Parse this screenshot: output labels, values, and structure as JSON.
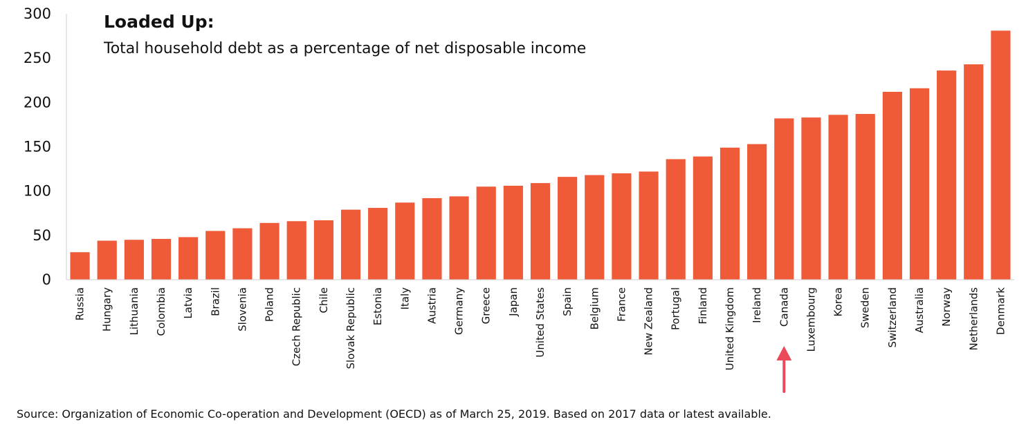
{
  "chart_data": {
    "type": "bar",
    "title": "Loaded Up:",
    "subtitle": "Total household debt as a percentage of net disposable income",
    "xlabel": "",
    "ylabel": "",
    "ylim": [
      0,
      300
    ],
    "yticks": [
      "0",
      "50",
      "100",
      "150",
      "200",
      "250",
      "300"
    ],
    "grid": false,
    "bar_color": "#ef5a38",
    "highlight_color": "#ea4a5a",
    "highlight_category": "Canada",
    "categories": [
      "Russia",
      "Hungary",
      "Lithuania",
      "Colombia",
      "Latvia",
      "Brazil",
      "Slovenia",
      "Poland",
      "Czech Republic",
      "Chile",
      "Slovak Republic",
      "Estonia",
      "Italy",
      "Austria",
      "Germany",
      "Greece",
      "Japan",
      "United States",
      "Spain",
      "Belgium",
      "France",
      "New Zealand",
      "Portugal",
      "Finland",
      "United Kingdom",
      "Ireland",
      "Canada",
      "Luxembourg",
      "Korea",
      "Sweden",
      "Switzerland",
      "Australia",
      "Norway",
      "Netherlands",
      "Denmark"
    ],
    "values": [
      31,
      44,
      45,
      46,
      48,
      55,
      58,
      64,
      66,
      67,
      79,
      81,
      87,
      92,
      94,
      105,
      106,
      109,
      116,
      118,
      120,
      122,
      136,
      139,
      149,
      153,
      182,
      183,
      186,
      187,
      212,
      216,
      236,
      243,
      281
    ]
  },
  "source": "Source: Organization of Economic Co-operation and Development (OECD) as of March 25, 2019. Based on 2017 data or latest available."
}
